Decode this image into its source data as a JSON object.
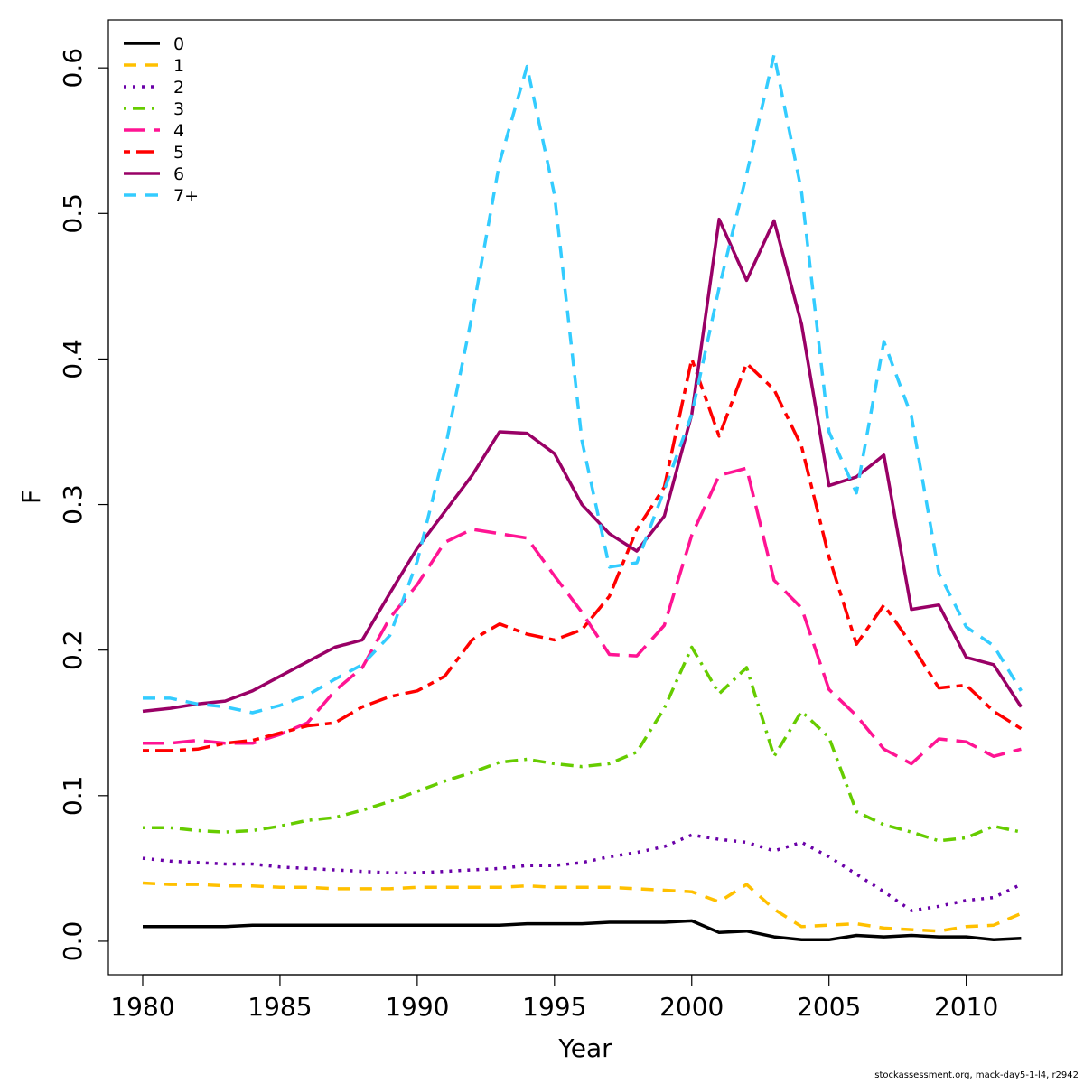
{
  "chart_data": {
    "type": "line",
    "xlabel": "Year",
    "ylabel": "F",
    "xlim": [
      1978.75,
      2013.5
    ],
    "ylim": [
      -0.023,
      0.633
    ],
    "xticks": [
      1980,
      1985,
      1990,
      1995,
      2000,
      2005,
      2010
    ],
    "yticks": [
      "0.0",
      "0.1",
      "0.2",
      "0.3",
      "0.4",
      "0.5",
      "0.6"
    ],
    "legend_position": "top-left",
    "x": [
      1980,
      1981,
      1982,
      1983,
      1984,
      1985,
      1986,
      1987,
      1988,
      1989,
      1990,
      1991,
      1992,
      1993,
      1994,
      1995,
      1996,
      1997,
      1998,
      1999,
      2000,
      2001,
      2002,
      2003,
      2004,
      2005,
      2006,
      2007,
      2008,
      2009,
      2010,
      2011,
      2012
    ],
    "series": [
      {
        "name": "0",
        "color": "#000000",
        "dash": "solid",
        "values": [
          0.01,
          0.01,
          0.01,
          0.01,
          0.011,
          0.011,
          0.011,
          0.011,
          0.011,
          0.011,
          0.011,
          0.011,
          0.011,
          0.011,
          0.012,
          0.012,
          0.012,
          0.013,
          0.013,
          0.013,
          0.014,
          0.006,
          0.007,
          0.003,
          0.001,
          0.001,
          0.004,
          0.003,
          0.004,
          0.003,
          0.003,
          0.001,
          0.002
        ]
      },
      {
        "name": "1",
        "color": "#FFC000",
        "dash": "dashed",
        "values": [
          0.04,
          0.039,
          0.039,
          0.038,
          0.038,
          0.037,
          0.037,
          0.036,
          0.036,
          0.036,
          0.037,
          0.037,
          0.037,
          0.037,
          0.038,
          0.037,
          0.037,
          0.037,
          0.036,
          0.035,
          0.034,
          0.027,
          0.039,
          0.022,
          0.01,
          0.011,
          0.012,
          0.009,
          0.008,
          0.007,
          0.01,
          0.011,
          0.019
        ]
      },
      {
        "name": "2",
        "color": "#6A00A8",
        "dash": "dotted",
        "values": [
          0.057,
          0.055,
          0.054,
          0.053,
          0.053,
          0.051,
          0.05,
          0.049,
          0.048,
          0.047,
          0.047,
          0.048,
          0.049,
          0.05,
          0.052,
          0.052,
          0.054,
          0.058,
          0.061,
          0.065,
          0.073,
          0.07,
          0.068,
          0.062,
          0.068,
          0.058,
          0.046,
          0.034,
          0.021,
          0.024,
          0.028,
          0.03,
          0.039
        ]
      },
      {
        "name": "3",
        "color": "#66CC00",
        "dash": "dotdash",
        "values": [
          0.078,
          0.078,
          0.076,
          0.075,
          0.076,
          0.079,
          0.083,
          0.085,
          0.09,
          0.096,
          0.103,
          0.11,
          0.116,
          0.123,
          0.125,
          0.122,
          0.12,
          0.122,
          0.13,
          0.16,
          0.202,
          0.17,
          0.188,
          0.127,
          0.158,
          0.14,
          0.089,
          0.08,
          0.075,
          0.069,
          0.071,
          0.079,
          0.075
        ]
      },
      {
        "name": "4",
        "color": "#FF1493",
        "dash": "longdash",
        "values": [
          0.136,
          0.136,
          0.138,
          0.136,
          0.136,
          0.142,
          0.15,
          0.172,
          0.188,
          0.222,
          0.245,
          0.274,
          0.283,
          0.28,
          0.277,
          0.251,
          0.226,
          0.197,
          0.196,
          0.217,
          0.279,
          0.32,
          0.325,
          0.248,
          0.229,
          0.173,
          0.155,
          0.132,
          0.122,
          0.139,
          0.137,
          0.127,
          0.132
        ]
      },
      {
        "name": "5",
        "color": "#FF0000",
        "dash": "twodash",
        "values": [
          0.131,
          0.131,
          0.132,
          0.136,
          0.138,
          0.143,
          0.148,
          0.15,
          0.161,
          0.168,
          0.172,
          0.182,
          0.207,
          0.218,
          0.211,
          0.207,
          0.214,
          0.237,
          0.283,
          0.312,
          0.4,
          0.347,
          0.397,
          0.379,
          0.34,
          0.264,
          0.204,
          0.231,
          0.204,
          0.174,
          0.176,
          0.158,
          0.146
        ]
      },
      {
        "name": "6",
        "color": "#990066",
        "dash": "solid",
        "values": [
          0.158,
          0.16,
          0.163,
          0.165,
          0.172,
          0.182,
          0.192,
          0.202,
          0.207,
          0.239,
          0.27,
          0.295,
          0.32,
          0.35,
          0.349,
          0.335,
          0.3,
          0.28,
          0.268,
          0.292,
          0.362,
          0.496,
          0.454,
          0.495,
          0.424,
          0.313,
          0.319,
          0.334,
          0.228,
          0.231,
          0.195,
          0.19,
          0.161
        ]
      },
      {
        "name": "7+",
        "color": "#33CCFF",
        "dash": "dashed",
        "values": [
          0.167,
          0.167,
          0.163,
          0.161,
          0.157,
          0.162,
          0.169,
          0.18,
          0.19,
          0.21,
          0.261,
          0.337,
          0.43,
          0.535,
          0.601,
          0.513,
          0.344,
          0.257,
          0.26,
          0.31,
          0.362,
          0.449,
          0.527,
          0.609,
          0.515,
          0.35,
          0.308,
          0.412,
          0.361,
          0.253,
          0.216,
          0.203,
          0.172
        ]
      }
    ]
  },
  "credit": "stockassessment.org, mack-day5-1-l4, r2942"
}
